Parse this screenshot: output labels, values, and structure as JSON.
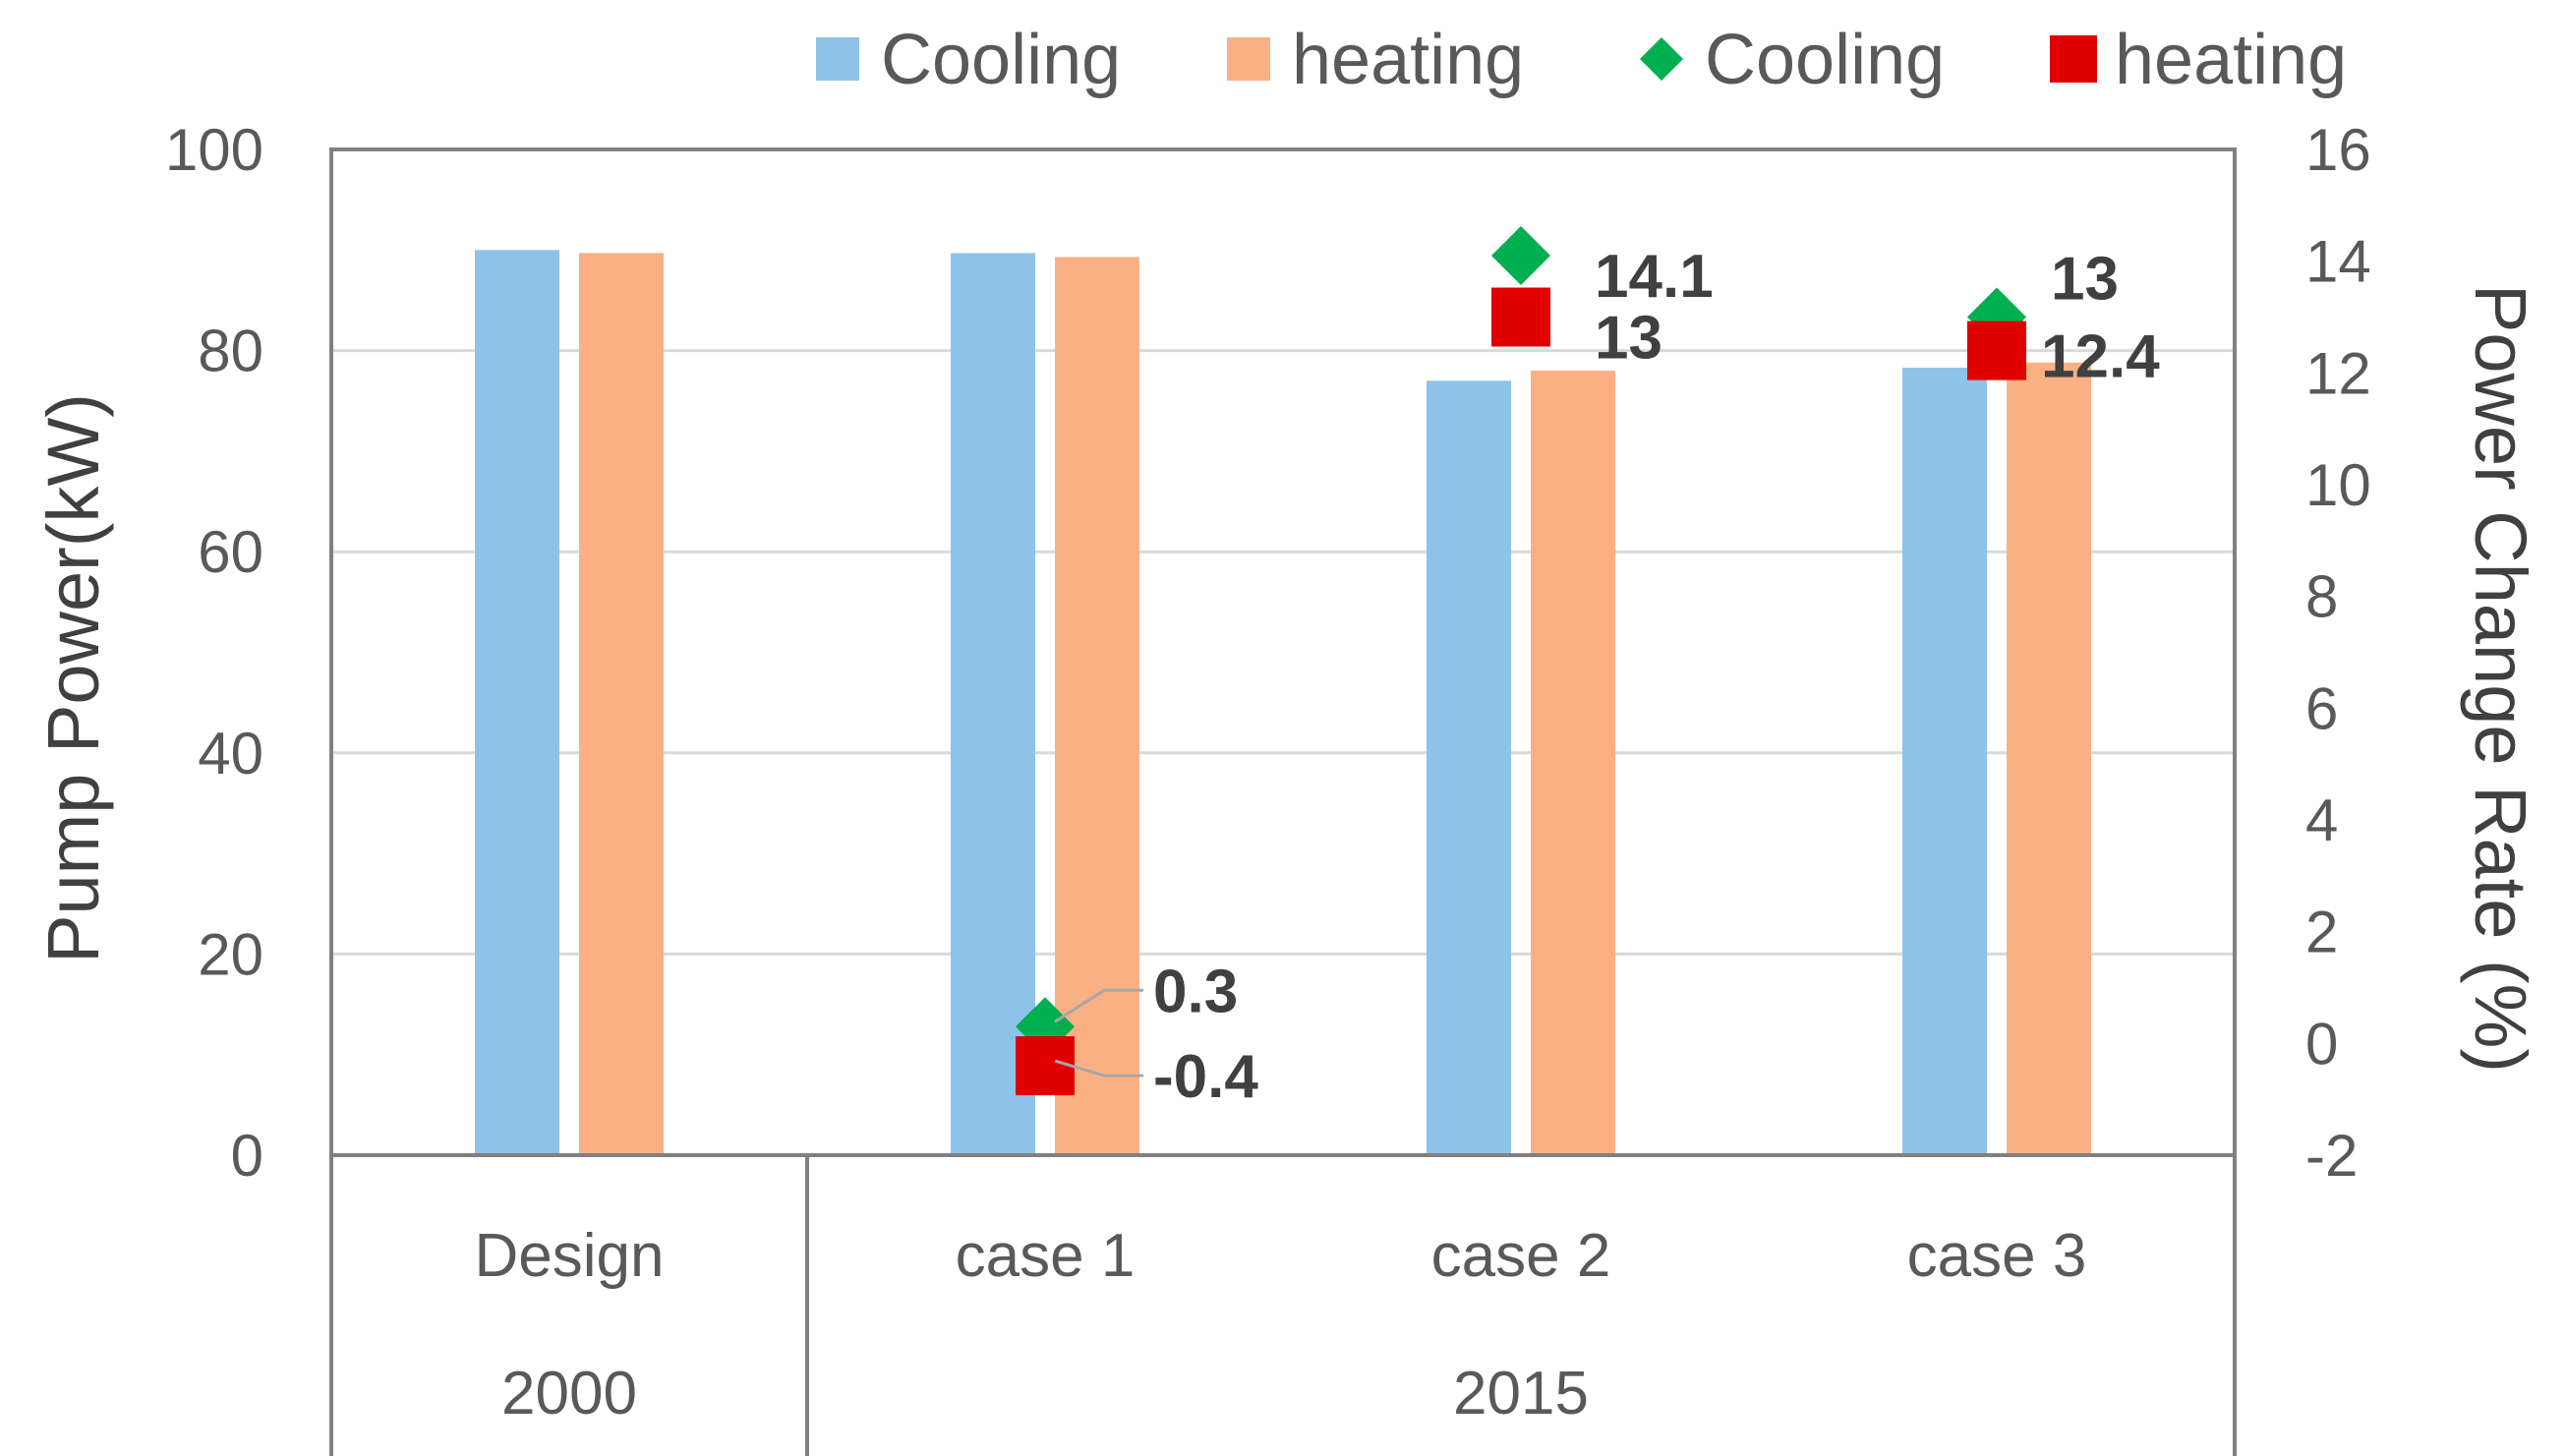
{
  "chart_data": {
    "type": "bar",
    "categories": [
      "Design",
      "case 1",
      "case 2",
      "case 3"
    ],
    "groups": [
      {
        "label": "2000",
        "categories": [
          "Design"
        ]
      },
      {
        "label": "2015",
        "categories": [
          "case 1",
          "case 2",
          "case 3"
        ]
      }
    ],
    "series": [
      {
        "name": "Cooling",
        "axis": "left",
        "kind": "bar",
        "color": "#8EC3E9",
        "values": [
          90,
          89.7,
          77,
          78.3
        ]
      },
      {
        "name": "heating",
        "axis": "left",
        "kind": "bar",
        "color": "#FBB084",
        "values": [
          89.7,
          89.3,
          78,
          78.8
        ]
      },
      {
        "name": "Cooling",
        "axis": "right",
        "kind": "marker",
        "marker": "diamond",
        "color": "#00B050",
        "values": [
          null,
          0.3,
          14.1,
          13
        ],
        "labels": [
          "",
          "0.3",
          "14.1",
          "13"
        ]
      },
      {
        "name": "heating",
        "axis": "right",
        "kind": "marker",
        "marker": "square",
        "color": "#E00000",
        "values": [
          null,
          -0.4,
          13,
          12.4
        ],
        "labels": [
          "",
          "-0.4",
          "13",
          "12.4"
        ]
      }
    ],
    "ylabel": "Pump Power(kW)",
    "y2label": "Power Change Rate (%)",
    "ylim": [
      0,
      100
    ],
    "yticks": [
      "0",
      "20",
      "40",
      "60",
      "80",
      "100"
    ],
    "y2lim": [
      -2,
      16
    ],
    "y2ticks": [
      "-2",
      "0",
      "2",
      "4",
      "6",
      "8",
      "10",
      "12",
      "14",
      "16"
    ],
    "grid": true,
    "legend_position": "top"
  }
}
